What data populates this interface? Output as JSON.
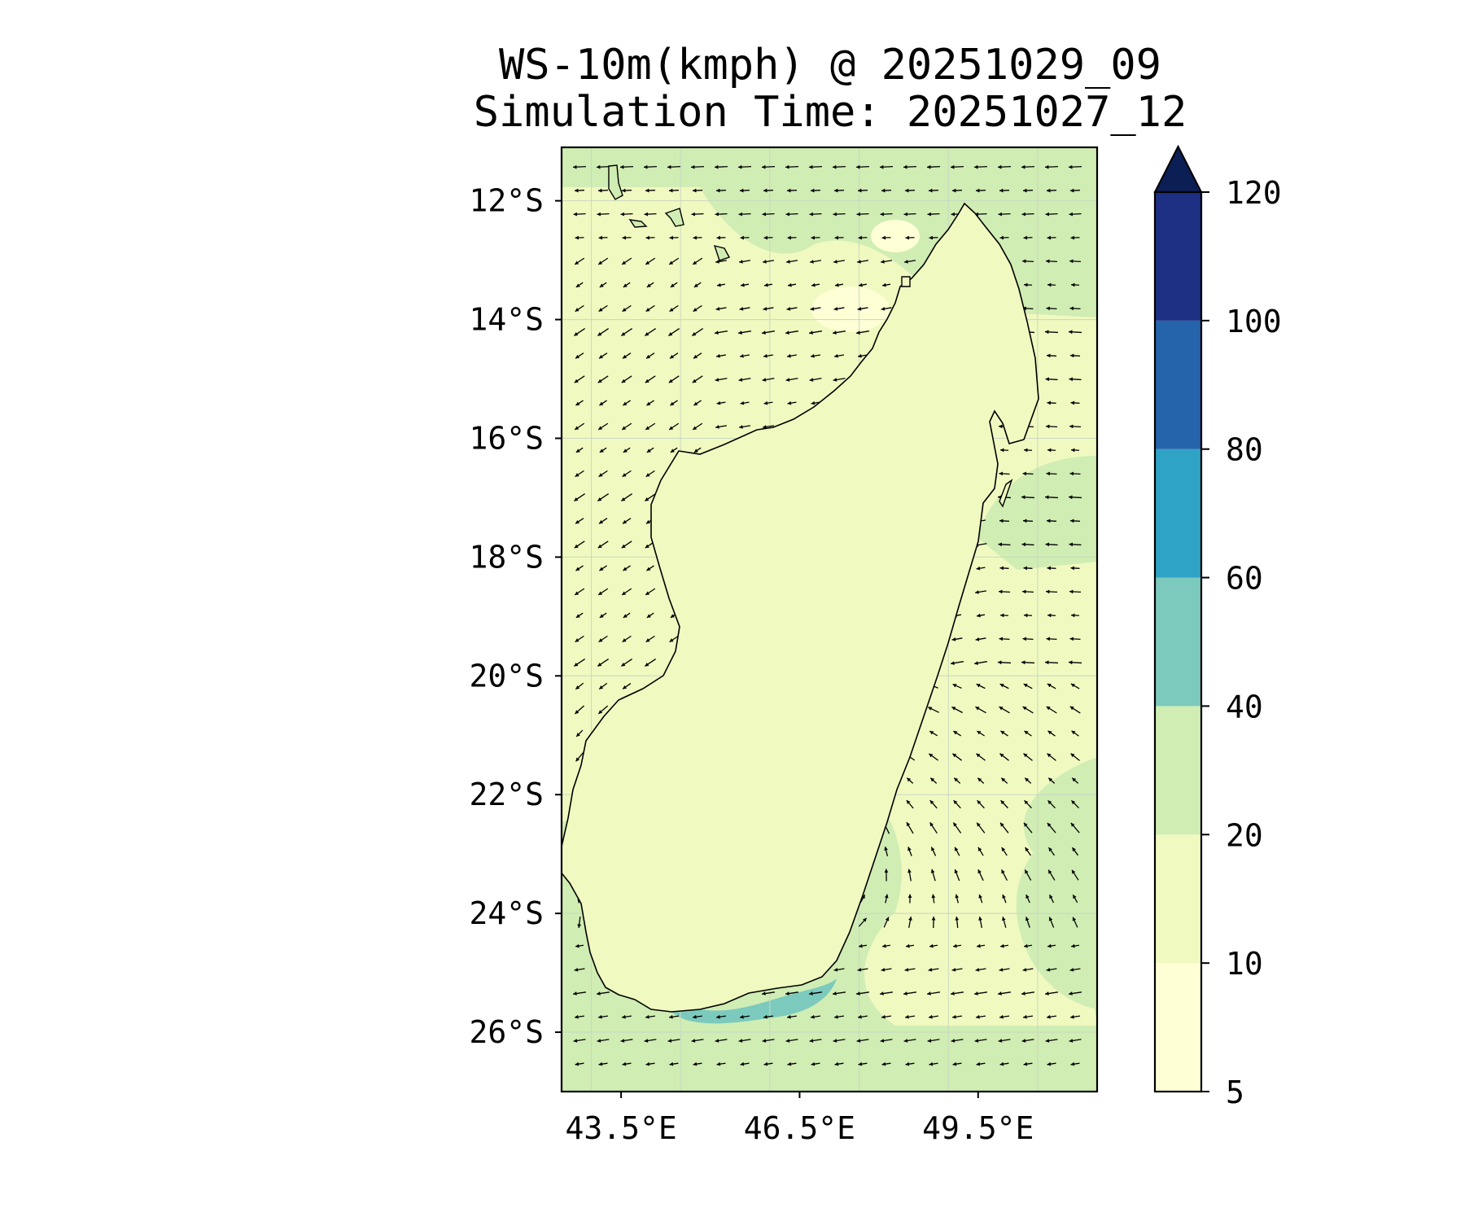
{
  "title": {
    "line1": "WS-10m(kmph) @ 20251029_09",
    "line2": "Simulation Time: 20251027_12"
  },
  "map": {
    "region": "Madagascar",
    "lon_range": [
      42.5,
      51.5
    ],
    "lat_range": [
      -27.0,
      -11.1
    ],
    "lon_ticks": [
      {
        "value": 43.5,
        "label": "43.5°E"
      },
      {
        "value": 46.5,
        "label": "46.5°E"
      },
      {
        "value": 49.5,
        "label": "49.5°E"
      }
    ],
    "lat_ticks": [
      {
        "value": -12,
        "label": "12°S"
      },
      {
        "value": -14,
        "label": "14°S"
      },
      {
        "value": -16,
        "label": "16°S"
      },
      {
        "value": -18,
        "label": "18°S"
      },
      {
        "value": -20,
        "label": "20°S"
      },
      {
        "value": -22,
        "label": "22°S"
      },
      {
        "value": -24,
        "label": "24°S"
      },
      {
        "value": -26,
        "label": "26°S"
      }
    ],
    "gridlines": true,
    "wind_vectors": true
  },
  "colorbar": {
    "levels": [
      {
        "value": 5,
        "label": "5"
      },
      {
        "value": 10,
        "label": "10"
      },
      {
        "value": 20,
        "label": "20"
      },
      {
        "value": 40,
        "label": "40"
      },
      {
        "value": 60,
        "label": "60"
      },
      {
        "value": 80,
        "label": "80"
      },
      {
        "value": 100,
        "label": "100"
      },
      {
        "value": 120,
        "label": "120"
      }
    ],
    "colors": [
      "#ffffd6",
      "#f0f9c0",
      "#d0edb4",
      "#7ccabd",
      "#2fa3c6",
      "#2563ab",
      "#1d2f82"
    ],
    "extend_color": "#0c1f55",
    "extend": "max"
  }
}
